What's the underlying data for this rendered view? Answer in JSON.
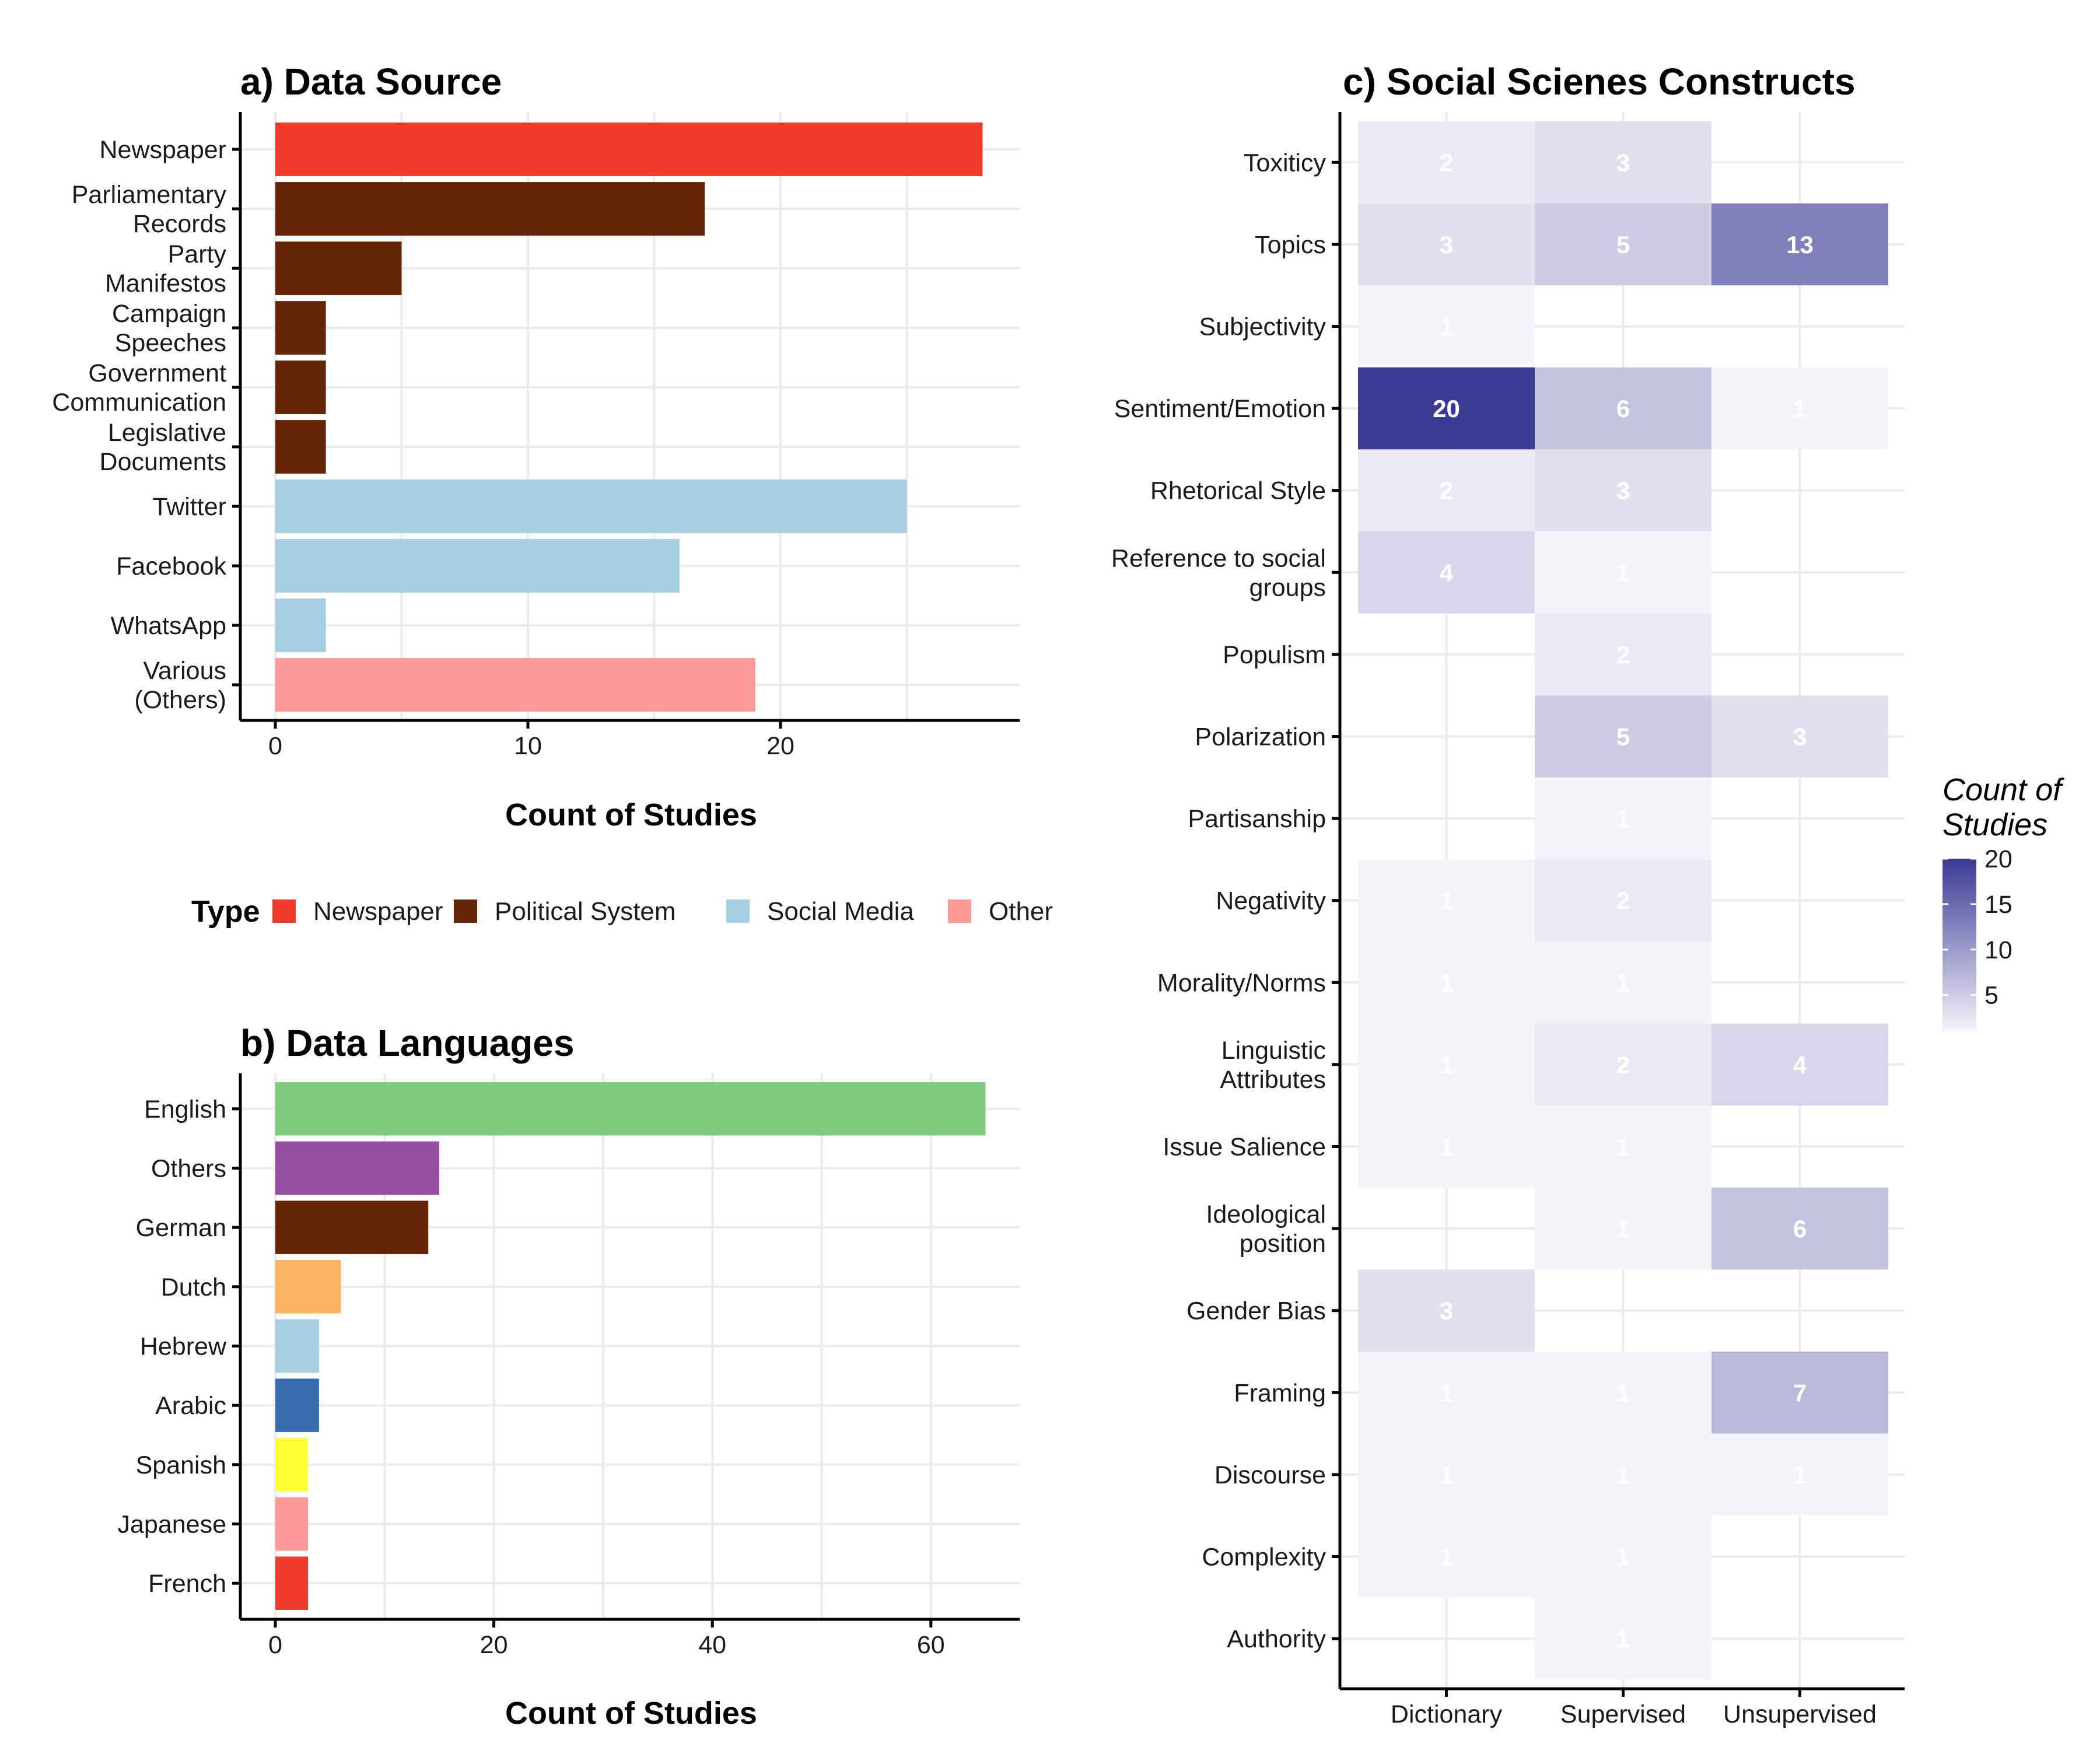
{
  "chart_data": [
    {
      "type": "bar",
      "orientation": "horizontal",
      "title": "a) Data Source",
      "xlabel": "Count of Studies",
      "ylabel": "",
      "xlim": [
        0,
        29
      ],
      "xticks": [
        0,
        10,
        20
      ],
      "grid": true,
      "categories": [
        [
          "Newspaper"
        ],
        [
          "Parliamentary",
          "Records"
        ],
        [
          "Party",
          "Manifestos"
        ],
        [
          "Campaign",
          "Speeches"
        ],
        [
          "Government",
          "Communication"
        ],
        [
          "Legislative",
          "Documents"
        ],
        [
          "Twitter"
        ],
        [
          "Facebook"
        ],
        [
          "WhatsApp"
        ],
        [
          "Various",
          "(Others)"
        ]
      ],
      "values": [
        28,
        17,
        5,
        2,
        2,
        2,
        25,
        16,
        2,
        19
      ],
      "types": [
        "Newspaper",
        "Political System",
        "Political System",
        "Political System",
        "Political System",
        "Political System",
        "Social Media",
        "Social Media",
        "Social Media",
        "Other"
      ],
      "legend": {
        "title": "Type",
        "position": "bottom",
        "items": [
          {
            "label": "Newspaper",
            "color": "#ef3b2c"
          },
          {
            "label": "Political System",
            "color": "#662506"
          },
          {
            "label": "Social Media",
            "color": "#a6cee3"
          },
          {
            "label": "Other",
            "color": "#fb9a99"
          }
        ]
      }
    },
    {
      "type": "bar",
      "orientation": "horizontal",
      "title": "b) Data Languages",
      "xlabel": "Count of Studies",
      "ylabel": "",
      "xlim": [
        0,
        68
      ],
      "xticks": [
        0,
        20,
        40,
        60
      ],
      "grid": true,
      "categories": [
        "English",
        "Others",
        "German",
        "Dutch",
        "Hebrew",
        "Arabic",
        "Spanish",
        "Japanese",
        "French"
      ],
      "values": [
        65,
        15,
        14,
        6,
        4,
        4,
        3,
        3,
        3
      ],
      "colors": [
        "#7fc97f",
        "#984ea3",
        "#662506",
        "#fdb462",
        "#a6cee3",
        "#386cb0",
        "#ffff33",
        "#fb9a99",
        "#ef3b2c"
      ]
    },
    {
      "type": "heatmap",
      "title": "c) Social Scienes Constructs",
      "xlabel": "",
      "ylabel": "",
      "x": [
        "Dictionary",
        "Supervised",
        "Unsupervised"
      ],
      "y": [
        [
          "Toxiticy"
        ],
        [
          "Topics"
        ],
        [
          "Subjectivity"
        ],
        [
          "Sentiment/Emotion"
        ],
        [
          "Rhetorical Style"
        ],
        [
          "Reference to social",
          "groups"
        ],
        [
          "Populism"
        ],
        [
          "Polarization"
        ],
        [
          "Partisanship"
        ],
        [
          "Negativity"
        ],
        [
          "Morality/Norms"
        ],
        [
          "Linguistic",
          "Attributes"
        ],
        [
          "Issue Salience"
        ],
        [
          "Ideological",
          "position"
        ],
        [
          "Gender Bias"
        ],
        [
          "Framing"
        ],
        [
          "Discourse"
        ],
        [
          "Complexity"
        ],
        [
          "Authority"
        ]
      ],
      "values": [
        [
          2,
          3,
          null
        ],
        [
          3,
          5,
          13
        ],
        [
          1,
          null,
          null
        ],
        [
          20,
          6,
          1
        ],
        [
          2,
          3,
          null
        ],
        [
          4,
          1,
          null
        ],
        [
          null,
          2,
          null
        ],
        [
          null,
          5,
          3
        ],
        [
          null,
          1,
          null
        ],
        [
          1,
          2,
          null
        ],
        [
          1,
          1,
          null
        ],
        [
          1,
          2,
          4
        ],
        [
          1,
          1,
          null
        ],
        [
          null,
          1,
          6
        ],
        [
          3,
          null,
          null
        ],
        [
          1,
          1,
          7
        ],
        [
          1,
          1,
          1
        ],
        [
          1,
          1,
          null
        ],
        [
          null,
          1,
          null
        ]
      ],
      "grid": true,
      "colorbar": {
        "title": [
          "Count of",
          "Studies"
        ],
        "range": [
          1,
          20
        ],
        "ticks": [
          5,
          10,
          15,
          20
        ],
        "low_color": "#f5f3fa",
        "high_color": "#3b3b94",
        "position": "right"
      }
    }
  ]
}
